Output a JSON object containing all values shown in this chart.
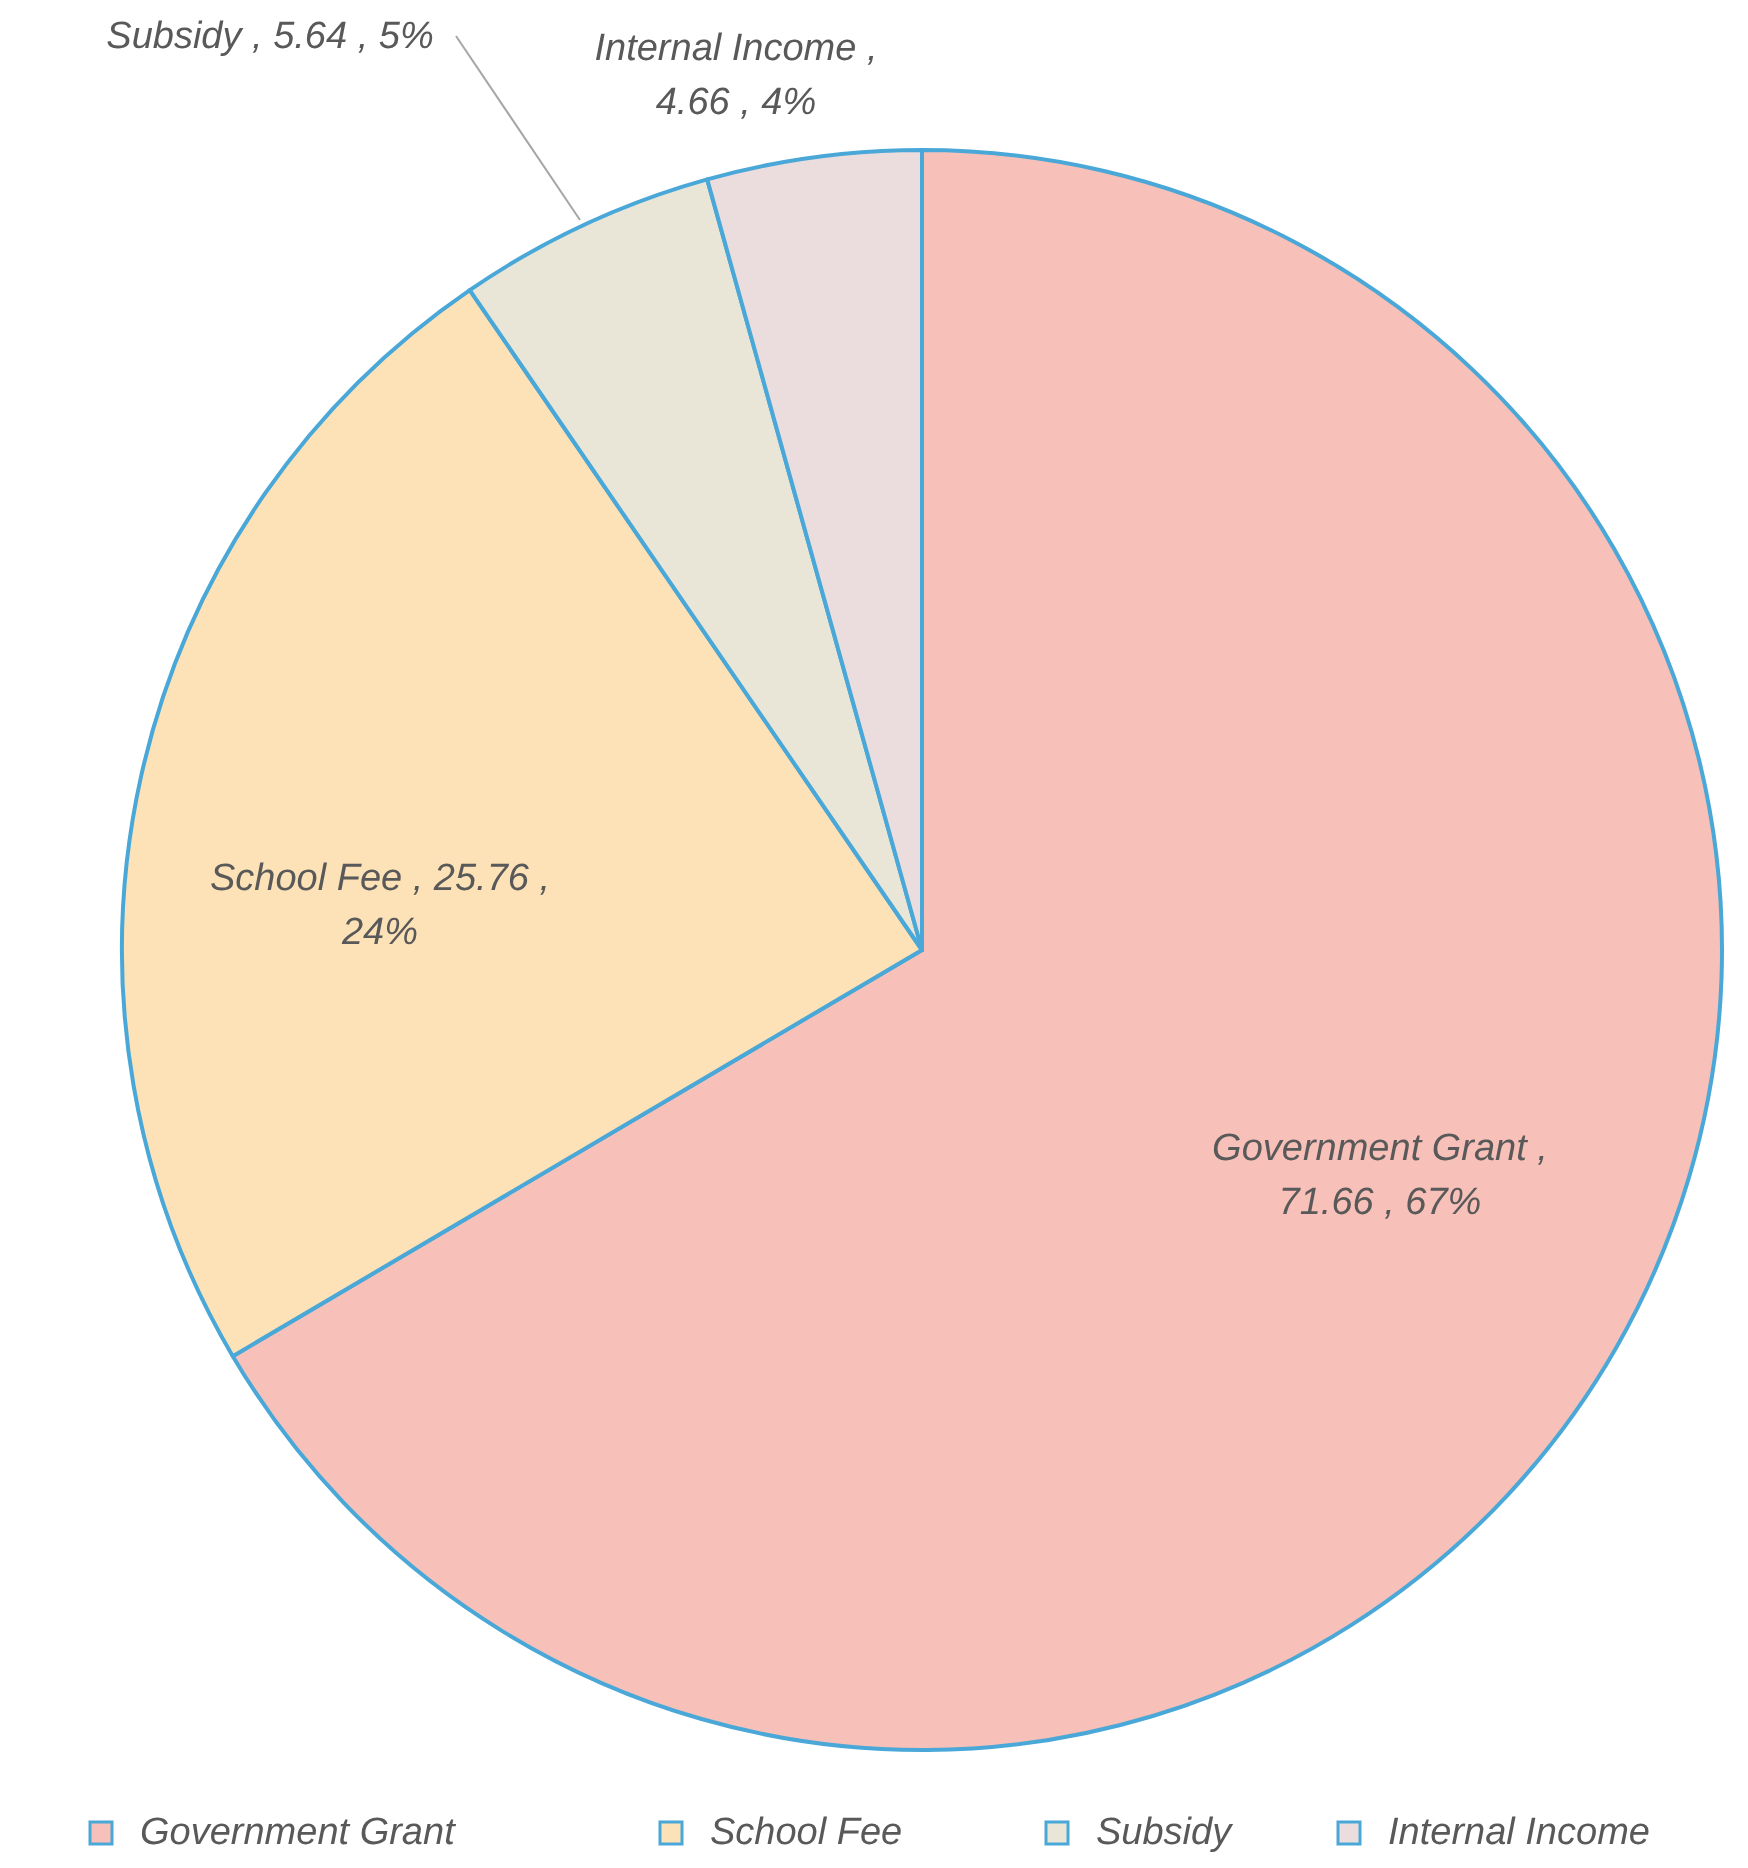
{
  "chart_data": {
    "type": "pie",
    "categories": [
      "Government Grant",
      "School Fee",
      "Subsidy",
      "Internal Income"
    ],
    "values": [
      71.66,
      25.76,
      5.64,
      4.66
    ],
    "colors": [
      "#f7c0b8",
      "#fde2b8",
      "#e9e6d8",
      "#ebdddd"
    ],
    "value_labels": [
      "Government Grant , 71.66 , 67%",
      "School Fee , 25.76 , 24%",
      "Subsidy , 5.64 , 5%",
      "Internal Income , 4.66 , 4%"
    ],
    "legend": "bottom"
  }
}
